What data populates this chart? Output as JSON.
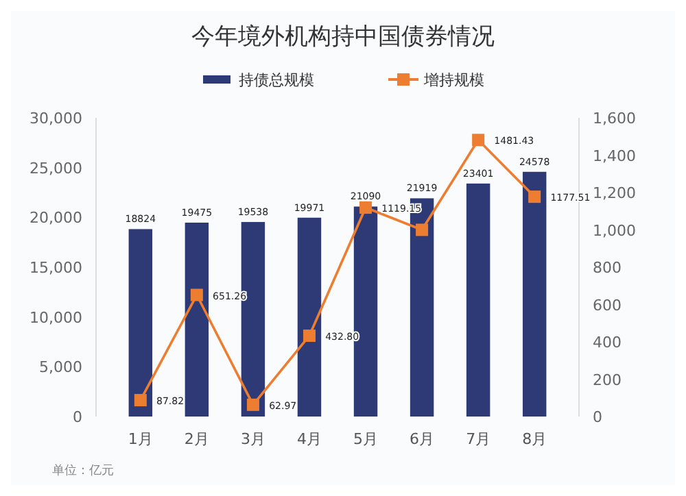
{
  "chart_data": {
    "type": "bar",
    "title": "今年境外机构持中国债券情况",
    "categories": [
      "1月",
      "2月",
      "3月",
      "4月",
      "5月",
      "6月",
      "7月",
      "8月"
    ],
    "series": [
      {
        "name": "持债总规模",
        "color": "#2e3a75",
        "values": [
          18824,
          19475,
          19538,
          19971,
          21090,
          21919,
          23401,
          24578
        ],
        "value_labels": [
          "18824",
          "19475",
          "19538",
          "19971",
          "21090",
          "21919",
          "23401",
          "24578"
        ]
      },
      {
        "name": "增持规模",
        "type": "line",
        "axis": "y2",
        "color": "#ed7d31",
        "values": [
          87.82,
          651.26,
          62.97,
          432.8,
          1119.15,
          1000,
          1481.43,
          1177.51
        ],
        "value_labels": [
          "87.82",
          "651.26",
          "62.97",
          "432.80",
          "1119.15",
          null,
          "1481.43",
          "1177.51"
        ]
      }
    ],
    "ylim": [
      0,
      30000
    ],
    "yticks": [
      {
        "value": 0,
        "label": "0"
      },
      {
        "value": 5000,
        "label": "5,000"
      },
      {
        "value": 10000,
        "label": "10,000"
      },
      {
        "value": 15000,
        "label": "15,000"
      },
      {
        "value": 20000,
        "label": "20,000"
      },
      {
        "value": 25000,
        "label": "25,000"
      },
      {
        "value": 30000,
        "label": "30,000"
      }
    ],
    "y2lim": [
      0,
      1600
    ],
    "y2ticks": [
      0,
      200,
      400,
      600,
      800,
      {
        "value": 1000,
        "label": "1,000"
      },
      {
        "value": 1200,
        "label": "1,200"
      },
      {
        "value": 1400,
        "label": "1,400"
      },
      {
        "value": 1600,
        "label": "1,600"
      }
    ],
    "legend": "top",
    "marker": "square",
    "grid": false,
    "annotations": [
      "单位：亿元"
    ]
  }
}
